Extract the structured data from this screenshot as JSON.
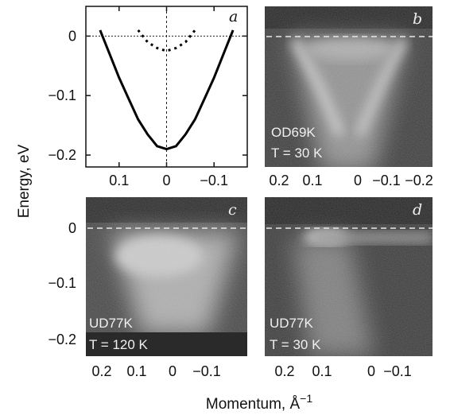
{
  "ylabel": "Energy, eV",
  "xlabel": "Momentum, Å",
  "xlabel_sup": "−1",
  "chart_data": [
    {
      "panel": "a",
      "type": "line",
      "xlim": [
        0.17,
        -0.17
      ],
      "ylim": [
        -0.22,
        0.05
      ],
      "x_ticks": [
        0.1,
        0,
        -0.1
      ],
      "x_tick_labels": [
        "0.1",
        "0",
        "−0.1"
      ],
      "y_ticks": [
        0,
        -0.1,
        -0.2
      ],
      "y_tick_labels": [
        "0",
        "−0.1",
        "−0.2"
      ],
      "reference_lines": {
        "y": 0,
        "x": 0
      },
      "series": [
        {
          "style": "solid",
          "x": [
            0.14,
            0.12,
            0.1,
            0.08,
            0.06,
            0.04,
            0.02,
            0,
            -0.02,
            -0.04,
            -0.06,
            -0.08,
            -0.1,
            -0.12,
            -0.14
          ],
          "y": [
            0.01,
            -0.03,
            -0.07,
            -0.105,
            -0.14,
            -0.165,
            -0.185,
            -0.19,
            -0.185,
            -0.165,
            -0.14,
            -0.105,
            -0.07,
            -0.03,
            0.01
          ]
        },
        {
          "style": "dotted",
          "x": [
            0.06,
            0.04,
            0.02,
            0,
            -0.02,
            -0.04,
            -0.06
          ],
          "y": [
            0.01,
            -0.01,
            -0.02,
            -0.025,
            -0.02,
            -0.01,
            0.01
          ]
        }
      ]
    },
    {
      "panel": "b",
      "type": "heatmap",
      "sample": "OD69K",
      "temperature": "T = 30 K",
      "x_tick_labels": [
        "0.2",
        "0.1",
        "0",
        "−0.1",
        "−0.2"
      ]
    },
    {
      "panel": "c",
      "type": "heatmap",
      "sample": "UD77K",
      "temperature": "T = 120 K",
      "y_tick_labels": [
        "0",
        "−0.1",
        "−0.2"
      ],
      "x_tick_labels": [
        "0.2",
        "0.1",
        "0",
        "−0.1"
      ]
    },
    {
      "panel": "d",
      "type": "heatmap",
      "sample": "UD77K",
      "temperature": "T = 30 K",
      "x_tick_labels": [
        "0.2",
        "0.1",
        "0",
        "−0.1"
      ]
    }
  ]
}
